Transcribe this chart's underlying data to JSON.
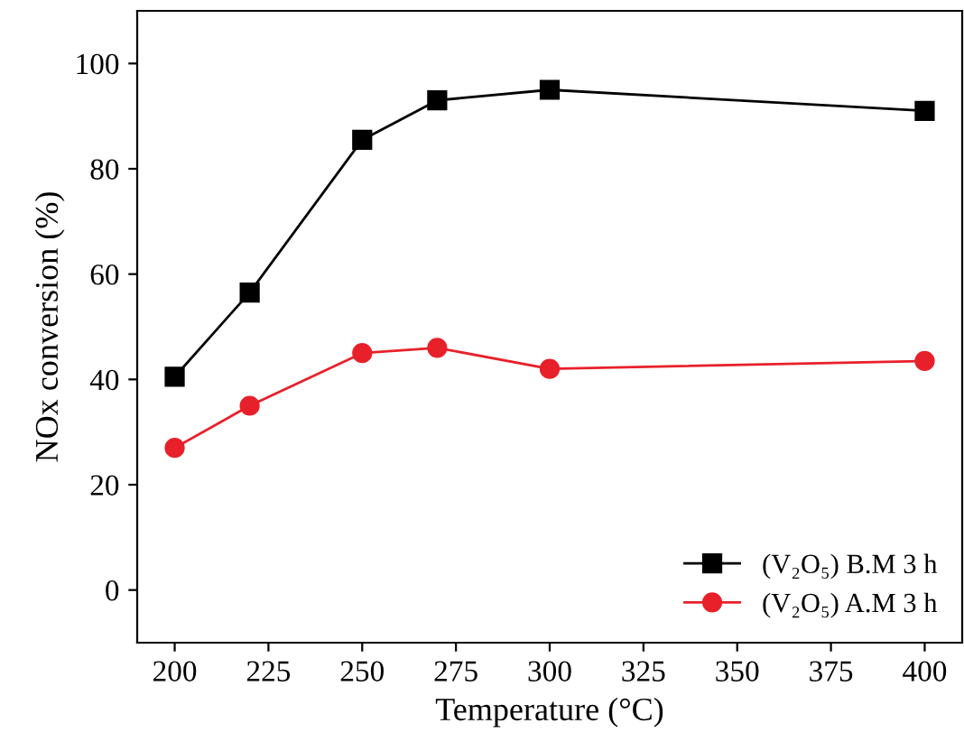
{
  "chart_data": {
    "type": "line",
    "xlabel": "Temperature (°C)",
    "ylabel": "NOx conversion (%)",
    "x": [
      200,
      220,
      250,
      270,
      300,
      400
    ],
    "series": [
      {
        "name": "(V₂O₅) B.M 3 h",
        "color": "#000000",
        "marker": "square",
        "values": [
          40.5,
          56.5,
          85.5,
          93,
          95,
          91
        ]
      },
      {
        "name": "(V₂O₅) A.M 3 h",
        "color": "#e8202a",
        "marker": "circle",
        "values": [
          27,
          35,
          45,
          46,
          42,
          43.5
        ]
      }
    ],
    "xlim": [
      190,
      410
    ],
    "ylim": [
      -10,
      110
    ],
    "xticks": [
      200,
      225,
      250,
      275,
      300,
      325,
      350,
      375,
      400
    ],
    "yticks": [
      0,
      20,
      40,
      60,
      80,
      100
    ],
    "legend": "bottom right",
    "grid": false,
    "line_style": "solid"
  }
}
